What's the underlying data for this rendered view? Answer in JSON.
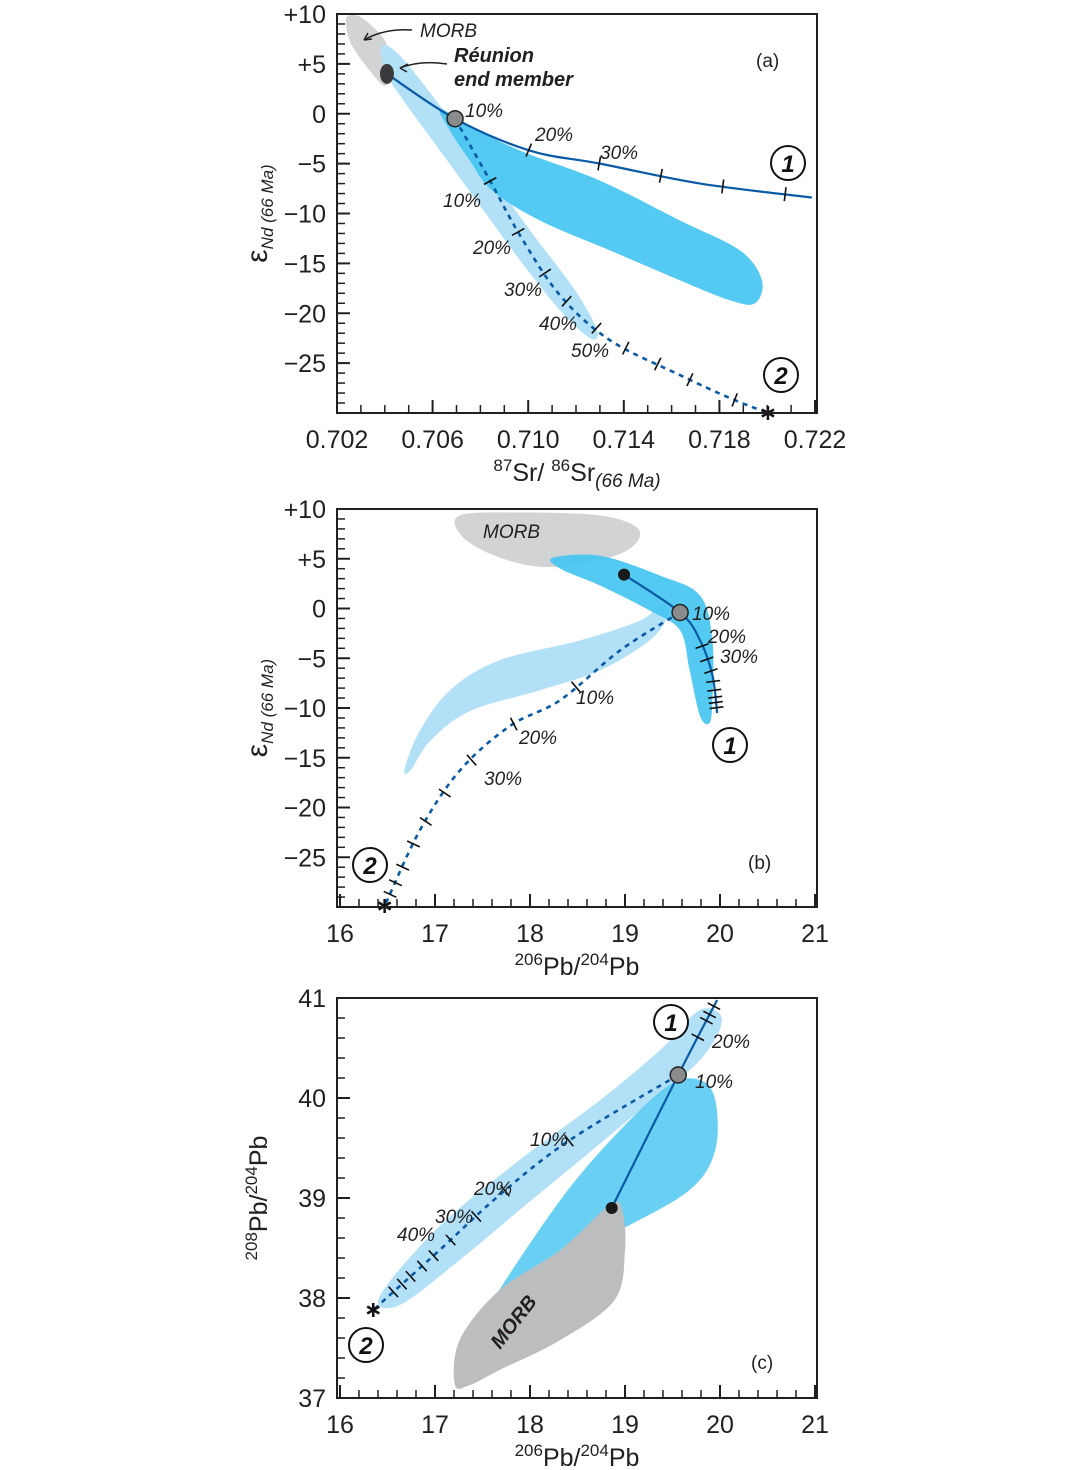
{
  "colors": {
    "light_field": "#b2e0f6",
    "medium_field": "#45c4f0",
    "medium_field_c": "#5ccbf2",
    "morb": "#d2d3d5",
    "morb_c": "#bcbdbf",
    "curve": "#0b5aa6",
    "axis": "#231f20"
  },
  "chart_data": [
    {
      "type": "line",
      "panel": "(a)",
      "xlabel": {
        "sup1": "87",
        "main1": "Sr/ ",
        "sup2": "86",
        "main2": "Sr",
        "sub": "(66 Ma)"
      },
      "ylabel": {
        "main": "ε",
        "sub": "Nd (66 Ma)"
      },
      "xlim": [
        0.702,
        0.722
      ],
      "ylim": [
        -30,
        10
      ],
      "xticks": [
        "0.702",
        "0.706",
        "0.710",
        "0.714",
        "0.718",
        "0.722"
      ],
      "xtick_values": [
        0.702,
        0.706,
        0.71,
        0.714,
        0.718,
        0.722
      ],
      "xminor": 0.001,
      "yticks": [
        "+10",
        "+5",
        "0",
        "−5",
        "−10",
        "−15",
        "−20",
        "−25"
      ],
      "ytick_values": [
        10,
        5,
        0,
        -5,
        -10,
        -15,
        -20,
        -25
      ],
      "yminor": 1,
      "fields": [
        {
          "name": "MORB",
          "color": "morb",
          "points": [
            [
              0.70246,
              9.8
            ],
            [
              0.70305,
              9.6
            ],
            [
              0.70401,
              7.3
            ],
            [
              0.7043,
              4.3
            ],
            [
              0.70401,
              2.8
            ],
            [
              0.70338,
              4.3
            ],
            [
              0.70263,
              6.8
            ],
            [
              0.70238,
              8.8
            ]
          ]
        },
        {
          "name": "light",
          "color": "light_field",
          "points": [
            [
              0.70388,
              6.8
            ],
            [
              0.70464,
              5.8
            ],
            [
              0.70631,
              0.8
            ],
            [
              0.70798,
              -4.7
            ],
            [
              0.71008,
              -11.7
            ],
            [
              0.71196,
              -17.7
            ],
            [
              0.71288,
              -21.7
            ],
            [
              0.71259,
              -22.5
            ],
            [
              0.71133,
              -19.7
            ],
            [
              0.70966,
              -14.7
            ],
            [
              0.70798,
              -9.2
            ],
            [
              0.70631,
              -3.7
            ],
            [
              0.70464,
              1.8
            ],
            [
              0.70401,
              4.3
            ]
          ]
        },
        {
          "name": "medium",
          "color": "medium_field",
          "points": [
            [
              0.70631,
              0.5
            ],
            [
              0.70756,
              -1.2
            ],
            [
              0.70966,
              -3.7
            ],
            [
              0.713,
              -6.7
            ],
            [
              0.71635,
              -10.7
            ],
            [
              0.71886,
              -13.7
            ],
            [
              0.71978,
              -16.7
            ],
            [
              0.71949,
              -19.0
            ],
            [
              0.71844,
              -18.7
            ],
            [
              0.71635,
              -16.7
            ],
            [
              0.71342,
              -13.7
            ],
            [
              0.71049,
              -10.7
            ],
            [
              0.70849,
              -7.7
            ],
            [
              0.70756,
              -4.7
            ],
            [
              0.70673,
              -1.7
            ]
          ]
        }
      ],
      "curves": [
        {
          "id": "1",
          "style": "solid",
          "points": [
            [
              0.70409,
              4.0
            ],
            [
              0.70694,
              -0.5
            ],
            [
              0.71008,
              -3.7
            ],
            [
              0.713,
              -5.0
            ],
            [
              0.71719,
              -7.0
            ],
            [
              0.72187,
              -8.4
            ]
          ],
          "ticks": [
            0.36,
            0.52,
            0.66,
            0.8,
            0.94
          ]
        },
        {
          "id": "2",
          "style": "dashed",
          "points": [
            [
              0.70694,
              -0.5
            ],
            [
              0.7084,
              -6.7
            ],
            [
              0.70966,
              -12.2
            ],
            [
              0.71133,
              -18.2
            ],
            [
              0.71342,
              -22.7
            ],
            [
              0.71635,
              -26.2
            ],
            [
              0.71844,
              -28.5
            ],
            [
              0.72003,
              -30.0
            ]
          ],
          "ticks": [
            0.16,
            0.29,
            0.4,
            0.48,
            0.57,
            0.65,
            0.73,
            0.81,
            0.92
          ]
        }
      ],
      "end_member": [
        0.70409,
        4.0
      ],
      "mix_point": [
        0.70694,
        -0.5
      ],
      "star": [
        0.72003,
        -30.0
      ],
      "labels": {
        "morb": "MORB",
        "reunion1": "Réunion",
        "reunion2": "end member",
        "c1_10": "10%",
        "c1_20": "20%",
        "c1_30": "30%",
        "c2_10": "10%",
        "c2_20": "20%",
        "c2_30": "30%",
        "c2_40": "40%",
        "c2_50": "50%",
        "n1": "1",
        "n2": "2",
        "panel": "(a)"
      }
    },
    {
      "type": "line",
      "panel": "(b)",
      "xlabel": {
        "sup1": "206",
        "main1": "Pb/",
        "sup2": "204",
        "main2": "Pb"
      },
      "ylabel": {
        "main": "ε",
        "sub": "Nd (66 Ma)"
      },
      "xlim": [
        16,
        21
      ],
      "ylim": [
        -30,
        10
      ],
      "xticks": [
        "16",
        "17",
        "18",
        "19",
        "20",
        "21"
      ],
      "xtick_values": [
        16,
        17,
        18,
        19,
        20,
        21
      ],
      "xminor": 0.2,
      "yticks": [
        "+10",
        "+5",
        "0",
        "−5",
        "−10",
        "−15",
        "−20",
        "−25"
      ],
      "ytick_values": [
        10,
        5,
        0,
        -5,
        -10,
        -15,
        -20,
        -25
      ],
      "yminor": 1,
      "fields": [
        {
          "name": "MORB",
          "color": "morb",
          "points": [
            [
              17.26,
              9.35
            ],
            [
              17.89,
              9.65
            ],
            [
              18.74,
              9.35
            ],
            [
              19.14,
              8.0
            ],
            [
              19.05,
              6.0
            ],
            [
              18.63,
              4.6
            ],
            [
              18.11,
              4.2
            ],
            [
              17.63,
              5.3
            ],
            [
              17.28,
              7.3
            ]
          ]
        },
        {
          "name": "light",
          "color": "light_field",
          "points": [
            [
              19.37,
              0.3
            ],
            [
              19.16,
              -1.2
            ],
            [
              18.53,
              -3.2
            ],
            [
              17.68,
              -5.2
            ],
            [
              17.16,
              -8.2
            ],
            [
              16.84,
              -12.3
            ],
            [
              16.68,
              -16.1
            ],
            [
              16.74,
              -16.3
            ],
            [
              16.95,
              -13.3
            ],
            [
              17.37,
              -10.3
            ],
            [
              18.11,
              -8.2
            ],
            [
              18.74,
              -6.2
            ],
            [
              19.26,
              -3.2
            ],
            [
              19.45,
              -0.7
            ]
          ]
        },
        {
          "name": "medium",
          "color": "medium_field",
          "points": [
            [
              18.24,
              5.1
            ],
            [
              18.74,
              5.3
            ],
            [
              19.37,
              3.3
            ],
            [
              19.79,
              1.3
            ],
            [
              19.92,
              -3.2
            ],
            [
              19.92,
              -9.2
            ],
            [
              19.89,
              -11.5
            ],
            [
              19.79,
              -10.8
            ],
            [
              19.68,
              -6.2
            ],
            [
              19.58,
              -2.2
            ],
            [
              19.26,
              -0.2
            ],
            [
              18.74,
              2.3
            ],
            [
              18.32,
              4.0
            ]
          ]
        }
      ],
      "curves": [
        {
          "id": "1",
          "style": "solid",
          "points": [
            [
              18.99,
              3.4
            ],
            [
              19.58,
              -0.4
            ],
            [
              19.79,
              -3.2
            ],
            [
              19.92,
              -6.7
            ],
            [
              19.97,
              -10.5
            ]
          ],
          "ticks": [
            0.61,
            0.69,
            0.76,
            0.82,
            0.87,
            0.91,
            0.94,
            0.97
          ]
        },
        {
          "id": "2",
          "style": "dashed",
          "points": [
            [
              19.58,
              -0.4
            ],
            [
              18.95,
              -4.2
            ],
            [
              18.32,
              -9.2
            ],
            [
              17.79,
              -11.8
            ],
            [
              17.26,
              -16.3
            ],
            [
              16.84,
              -22.3
            ],
            [
              16.47,
              -29.9
            ]
          ],
          "ticks": [
            0.3,
            0.47,
            0.6,
            0.7,
            0.78,
            0.84,
            0.9,
            0.94,
            0.97
          ]
        }
      ],
      "end_member": [
        18.99,
        3.4
      ],
      "mix_point": [
        19.58,
        -0.4
      ],
      "star": [
        16.47,
        -29.9
      ],
      "labels": {
        "morb": "MORB",
        "c1_10": "10%",
        "c1_20": "20%",
        "c1_30": "30%",
        "c2_10": "10%",
        "c2_20": "20%",
        "c2_30": "30%",
        "n1": "1",
        "n2": "2",
        "panel": "(b)"
      }
    },
    {
      "type": "line",
      "panel": "(c)",
      "xlabel": {
        "sup1": "206",
        "main1": "Pb/",
        "sup2": "204",
        "main2": "Pb"
      },
      "ylabel": {
        "sup1": "208",
        "main1": "Pb/",
        "sup2": "204",
        "main2": "Pb"
      },
      "xlim": [
        16,
        21
      ],
      "ylim": [
        37,
        41
      ],
      "xticks": [
        "16",
        "17",
        "18",
        "19",
        "20",
        "21"
      ],
      "xtick_values": [
        16,
        17,
        18,
        19,
        20,
        21
      ],
      "xminor": 0.2,
      "yticks": [
        "41",
        "40",
        "39",
        "38",
        "37"
      ],
      "ytick_values": [
        41,
        40,
        39,
        38,
        37
      ],
      "yminor": 0.2,
      "fields": [
        {
          "name": "light",
          "color": "light_field",
          "points": [
            [
              16.42,
              38.02
            ],
            [
              17.05,
              38.72
            ],
            [
              17.89,
              39.38
            ],
            [
              18.74,
              39.98
            ],
            [
              19.37,
              40.48
            ],
            [
              19.79,
              40.88
            ],
            [
              20.02,
              40.78
            ],
            [
              19.79,
              40.38
            ],
            [
              19.16,
              39.88
            ],
            [
              18.53,
              39.38
            ],
            [
              17.89,
              38.88
            ],
            [
              17.26,
              38.38
            ],
            [
              16.63,
              37.93
            ]
          ]
        },
        {
          "name": "medium",
          "color": "medium_field_c",
          "points": [
            [
              17.56,
              37.9
            ],
            [
              18.32,
              38.98
            ],
            [
              18.95,
              39.68
            ],
            [
              19.47,
              40.13
            ],
            [
              19.79,
              40.18
            ],
            [
              19.95,
              39.98
            ],
            [
              19.95,
              39.48
            ],
            [
              19.68,
              39.08
            ],
            [
              18.95,
              38.68
            ],
            [
              18.32,
              38.38
            ],
            [
              17.68,
              37.93
            ]
          ]
        },
        {
          "name": "MORB",
          "color": "morb_c",
          "points": [
            [
              17.21,
              37.13
            ],
            [
              17.26,
              37.58
            ],
            [
              17.68,
              38.08
            ],
            [
              18.32,
              38.48
            ],
            [
              18.84,
              38.93
            ],
            [
              18.97,
              38.88
            ],
            [
              19.0,
              38.48
            ],
            [
              18.89,
              37.98
            ],
            [
              18.32,
              37.58
            ],
            [
              17.68,
              37.28
            ],
            [
              17.37,
              37.13
            ]
          ]
        }
      ],
      "curves": [
        {
          "id": "1",
          "style": "solid",
          "points": [
            [
              18.86,
              38.9
            ],
            [
              19.56,
              40.23
            ],
            [
              19.97,
              40.98
            ]
          ],
          "ticks": [
            0.82,
            0.9,
            0.93,
            0.97
          ]
        },
        {
          "id": "2",
          "style": "dashed",
          "points": [
            [
              19.56,
              40.23
            ],
            [
              18.42,
              39.58
            ],
            [
              17.68,
              39.03
            ],
            [
              17.05,
              38.48
            ],
            [
              16.35,
              37.88
            ]
          ],
          "ticks": [
            0.33,
            0.54,
            0.64,
            0.73,
            0.79,
            0.83,
            0.87,
            0.9,
            0.93
          ]
        }
      ],
      "end_member": [
        18.86,
        38.9
      ],
      "mix_point": [
        19.56,
        40.23
      ],
      "star": [
        16.35,
        37.88
      ],
      "labels": {
        "morb": "MORB",
        "c1_10": "10%",
        "c1_20": "20%",
        "c2_10": "10%",
        "c2_20": "20%",
        "c2_30": "30%",
        "c2_40": "40%",
        "n1": "1",
        "n2": "2",
        "panel": "(c)"
      }
    }
  ]
}
